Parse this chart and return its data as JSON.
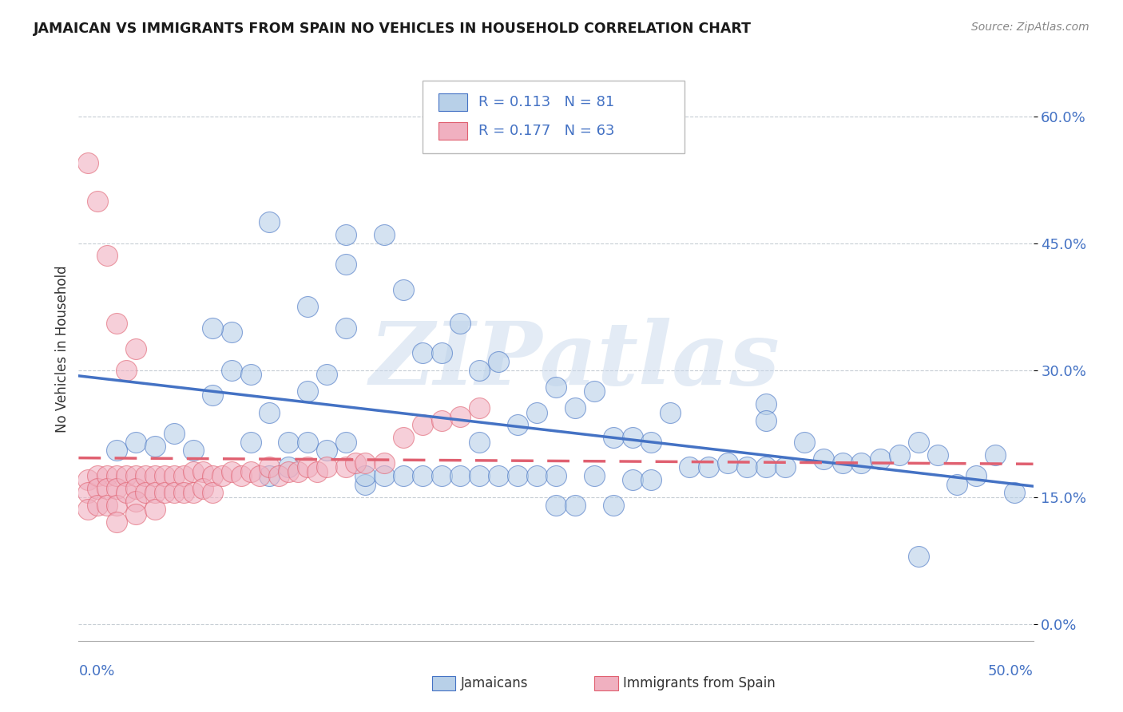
{
  "title": "JAMAICAN VS IMMIGRANTS FROM SPAIN NO VEHICLES IN HOUSEHOLD CORRELATION CHART",
  "source": "Source: ZipAtlas.com",
  "ylabel": "No Vehicles in Household",
  "yticks": [
    0.0,
    0.15,
    0.3,
    0.45,
    0.6
  ],
  "ytick_labels": [
    "0.0%",
    "15.0%",
    "30.0%",
    "45.0%",
    "60.0%"
  ],
  "xlim": [
    0.0,
    0.5
  ],
  "ylim": [
    -0.02,
    0.67
  ],
  "legend_r1": "R = 0.113",
  "legend_n1": "N = 81",
  "legend_r2": "R = 0.177",
  "legend_n2": "N = 63",
  "color_blue": "#b8d0e8",
  "color_pink": "#f0b0c0",
  "line_color_blue": "#4472c4",
  "line_color_pink": "#e06070",
  "watermark": "ZIPatlas",
  "jamaicans_x": [
    0.02,
    0.05,
    0.08,
    0.1,
    0.12,
    0.14,
    0.14,
    0.16,
    0.17,
    0.18,
    0.19,
    0.2,
    0.21,
    0.21,
    0.22,
    0.23,
    0.24,
    0.25,
    0.26,
    0.27,
    0.28,
    0.29,
    0.3,
    0.31,
    0.32,
    0.33,
    0.34,
    0.35,
    0.36,
    0.37,
    0.38,
    0.39,
    0.4,
    0.41,
    0.42,
    0.43,
    0.44,
    0.45,
    0.46,
    0.47,
    0.48,
    0.49,
    0.03,
    0.04,
    0.06,
    0.07,
    0.08,
    0.09,
    0.1,
    0.11,
    0.12,
    0.13,
    0.14,
    0.07,
    0.09,
    0.1,
    0.11,
    0.12,
    0.13,
    0.14,
    0.15,
    0.15,
    0.16,
    0.17,
    0.18,
    0.19,
    0.2,
    0.21,
    0.22,
    0.23,
    0.24,
    0.25,
    0.25,
    0.26,
    0.27,
    0.28,
    0.29,
    0.3,
    0.36,
    0.36,
    0.44
  ],
  "jamaicans_y": [
    0.205,
    0.225,
    0.345,
    0.475,
    0.375,
    0.425,
    0.46,
    0.46,
    0.395,
    0.32,
    0.32,
    0.355,
    0.3,
    0.215,
    0.31,
    0.235,
    0.25,
    0.28,
    0.255,
    0.275,
    0.22,
    0.22,
    0.215,
    0.25,
    0.185,
    0.185,
    0.19,
    0.185,
    0.185,
    0.185,
    0.215,
    0.195,
    0.19,
    0.19,
    0.195,
    0.2,
    0.215,
    0.2,
    0.165,
    0.175,
    0.2,
    0.155,
    0.215,
    0.21,
    0.205,
    0.35,
    0.3,
    0.295,
    0.175,
    0.185,
    0.275,
    0.295,
    0.35,
    0.27,
    0.215,
    0.25,
    0.215,
    0.215,
    0.205,
    0.215,
    0.165,
    0.175,
    0.175,
    0.175,
    0.175,
    0.175,
    0.175,
    0.175,
    0.175,
    0.175,
    0.175,
    0.14,
    0.175,
    0.14,
    0.175,
    0.14,
    0.17,
    0.17,
    0.26,
    0.24,
    0.08
  ],
  "spain_x": [
    0.005,
    0.005,
    0.005,
    0.01,
    0.01,
    0.01,
    0.015,
    0.015,
    0.015,
    0.02,
    0.02,
    0.02,
    0.02,
    0.025,
    0.025,
    0.03,
    0.03,
    0.03,
    0.03,
    0.035,
    0.035,
    0.04,
    0.04,
    0.04,
    0.045,
    0.045,
    0.05,
    0.05,
    0.055,
    0.055,
    0.06,
    0.06,
    0.065,
    0.065,
    0.07,
    0.07,
    0.075,
    0.08,
    0.085,
    0.09,
    0.095,
    0.1,
    0.105,
    0.11,
    0.115,
    0.12,
    0.125,
    0.13,
    0.14,
    0.145,
    0.15,
    0.16,
    0.17,
    0.18,
    0.19,
    0.2,
    0.21,
    0.005,
    0.01,
    0.015,
    0.02,
    0.025,
    0.03
  ],
  "spain_y": [
    0.17,
    0.155,
    0.135,
    0.175,
    0.16,
    0.14,
    0.175,
    0.16,
    0.14,
    0.175,
    0.16,
    0.14,
    0.12,
    0.175,
    0.155,
    0.175,
    0.16,
    0.145,
    0.13,
    0.175,
    0.155,
    0.175,
    0.155,
    0.135,
    0.175,
    0.155,
    0.175,
    0.155,
    0.175,
    0.155,
    0.18,
    0.155,
    0.18,
    0.16,
    0.175,
    0.155,
    0.175,
    0.18,
    0.175,
    0.18,
    0.175,
    0.185,
    0.175,
    0.18,
    0.18,
    0.185,
    0.18,
    0.185,
    0.185,
    0.19,
    0.19,
    0.19,
    0.22,
    0.235,
    0.24,
    0.245,
    0.255,
    0.545,
    0.5,
    0.435,
    0.355,
    0.3,
    0.325
  ]
}
